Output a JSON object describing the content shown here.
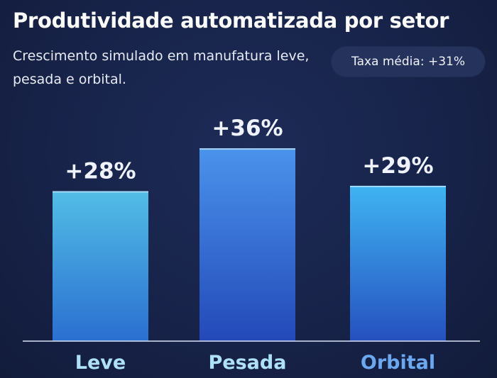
{
  "header": {
    "title": "Produtividade automatizada por setor",
    "subtitle": "Crescimento simulado em manufatura leve, pesada e orbital.",
    "badge": "Taxa média: +31%"
  },
  "colors": {
    "background": "#172349",
    "bar_leve_top": "#52bde6",
    "bar_leve_bottom": "#2a6fd0",
    "bar_pesada_top": "#4a93ec",
    "bar_pesada_bottom": "#2349b8",
    "bar_orbital_top": "#3fb4f2",
    "bar_orbital_bottom": "#2550bf",
    "label_leve": "#aee0f8",
    "label_pesada": "#aee0f8",
    "label_orbital": "#6ca8f0"
  },
  "chart_data": {
    "type": "bar",
    "title": "Produtividade automatizada por setor",
    "subtitle": "Crescimento simulado em manufatura leve, pesada e orbital.",
    "categories": [
      "Leve",
      "Pesada",
      "Orbital"
    ],
    "values": [
      28,
      36,
      29
    ],
    "value_labels": [
      "+28%",
      "+36%",
      "+29%"
    ],
    "xlabel": "",
    "ylabel": "",
    "ylim": [
      0,
      47
    ],
    "grid": false,
    "legend": "none",
    "annotation": "Taxa média: +31%"
  }
}
